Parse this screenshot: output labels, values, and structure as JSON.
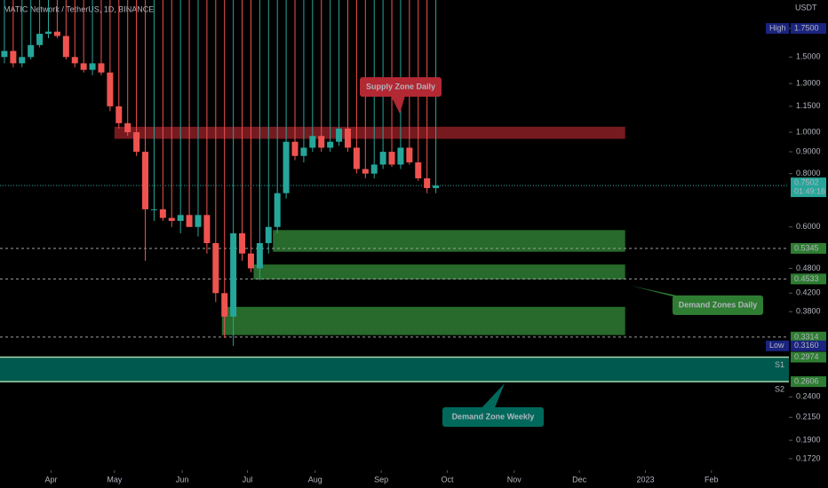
{
  "chart_data": {
    "type": "candlestick",
    "title": "MATIC Network / TetherUS, 1D, BINANCE",
    "currency": "USDT",
    "log_scale": true,
    "up_color": "#26a69a",
    "down_color": "#ef5350",
    "categories": [
      null,
      null,
      null,
      null,
      null,
      null,
      null,
      null,
      null,
      null,
      null,
      null,
      null,
      null,
      null,
      null,
      null,
      null,
      null,
      null,
      null,
      null,
      null,
      null,
      null,
      null,
      null,
      null,
      null,
      null,
      null,
      null,
      null,
      null,
      null,
      null,
      null,
      null,
      null,
      null,
      null,
      null,
      null,
      null,
      null,
      null,
      null,
      null,
      null,
      null
    ],
    "open": [
      1.5,
      1.55,
      1.45,
      1.5,
      1.6,
      1.7,
      1.72,
      1.68,
      1.5,
      1.45,
      1.4,
      1.45,
      1.38,
      1.15,
      1.05,
      1.0,
      0.9,
      0.66,
      0.66,
      0.63,
      0.62,
      0.64,
      0.6,
      0.64,
      0.55,
      0.42,
      0.37,
      0.58,
      0.52,
      0.48,
      0.55,
      0.6,
      0.72,
      0.95,
      0.88,
      0.92,
      0.98,
      0.92,
      0.95,
      1.02,
      0.92,
      0.82,
      0.8,
      0.84,
      0.9,
      0.84,
      0.92,
      0.85,
      0.78,
      0.74
    ],
    "high": {
      "name": "High",
      "value": 1.75,
      "label": "1.7500"
    },
    "low": [
      1.45,
      1.42,
      1.42,
      1.48,
      1.58,
      1.66,
      1.66,
      1.48,
      1.42,
      1.38,
      1.36,
      1.36,
      1.12,
      1.02,
      0.98,
      0.88,
      0.5,
      0.62,
      0.62,
      0.6,
      0.58,
      0.6,
      0.57,
      0.52,
      0.4,
      0.33,
      0.316,
      0.5,
      0.47,
      0.45,
      0.52,
      0.58,
      0.7,
      0.86,
      0.85,
      0.9,
      0.9,
      0.9,
      0.93,
      0.9,
      0.8,
      0.78,
      0.78,
      0.82,
      0.83,
      0.82,
      0.84,
      0.77,
      0.72,
      0.72
    ],
    "close": [
      1.55,
      1.45,
      1.5,
      1.6,
      1.7,
      1.72,
      1.68,
      1.5,
      1.45,
      1.4,
      1.45,
      1.38,
      1.15,
      1.05,
      1.0,
      0.9,
      0.66,
      0.66,
      0.63,
      0.62,
      0.64,
      0.6,
      0.64,
      0.55,
      0.42,
      0.37,
      0.58,
      0.52,
      0.48,
      0.55,
      0.6,
      0.72,
      0.95,
      0.88,
      0.92,
      0.98,
      0.92,
      0.95,
      1.02,
      0.92,
      0.82,
      0.8,
      0.84,
      0.9,
      0.84,
      0.92,
      0.85,
      0.78,
      0.74,
      0.75
    ],
    "xlim": [
      0,
      89.6
    ],
    "xticks": [
      {
        "value": 5.8,
        "label": "Apr"
      },
      {
        "value": 13,
        "label": "May"
      },
      {
        "value": 20.7,
        "label": "Jun"
      },
      {
        "value": 28.1,
        "label": "Jul"
      },
      {
        "value": 35.8,
        "label": "Aug"
      },
      {
        "value": 43.3,
        "label": "Sep"
      },
      {
        "value": 50.8,
        "label": "Oct"
      },
      {
        "value": 58.4,
        "label": "Nov"
      },
      {
        "value": 65.8,
        "label": "Dec"
      },
      {
        "value": 73.3,
        "label": "2023"
      },
      {
        "value": 80.8,
        "label": "Feb"
      }
    ],
    "ylim": [
      0.1616,
      2.04
    ],
    "yticks": [
      {
        "value": 1.75,
        "label": "1.7500"
      },
      {
        "value": 1.5,
        "label": "1.5000"
      },
      {
        "value": 1.3,
        "label": "1.3000"
      },
      {
        "value": 1.15,
        "label": "1.1500"
      },
      {
        "value": 1.0,
        "label": "1.0000"
      },
      {
        "value": 0.9,
        "label": "0.9000"
      },
      {
        "value": 0.8,
        "label": "0.8000"
      },
      {
        "value": 0.6,
        "label": "0.6000"
      },
      {
        "value": 0.48,
        "label": "0.4800"
      },
      {
        "value": 0.42,
        "label": "0.4200"
      },
      {
        "value": 0.38,
        "label": "0.3800"
      },
      {
        "value": 0.24,
        "label": "0.2400"
      },
      {
        "value": 0.215,
        "label": "0.2150"
      },
      {
        "value": 0.19,
        "label": "0.1900"
      },
      {
        "value": 0.172,
        "label": "0.1720"
      }
    ],
    "zones": [
      {
        "low": 0.965,
        "high": 1.03,
        "start": 13,
        "end": 71,
        "color": "#8b1e26"
      },
      {
        "low": 0.525,
        "high": 0.59,
        "start": 31,
        "end": 71,
        "color": "#2e7d32"
      },
      {
        "low": 0.452,
        "high": 0.49,
        "start": 28.8,
        "end": 71,
        "color": "#2e7d32"
      },
      {
        "low": 0.335,
        "high": 0.39,
        "start": 25.2,
        "end": 71,
        "color": "#2e7d32"
      },
      {
        "low": 0.2606,
        "high": 0.2974,
        "start": 0,
        "end": 89.6,
        "color": "#00695c"
      }
    ],
    "levels": [
      {
        "value": 0.5345,
        "label": "0.5345"
      },
      {
        "value": 0.4533,
        "label": "0.4533"
      },
      {
        "value": 0.3314,
        "label": "0.3314"
      }
    ],
    "supports": [
      {
        "value": 0.2974,
        "label": "0.2974",
        "name": "S1"
      },
      {
        "value": 0.2606,
        "label": "0.2606",
        "name": "S2"
      }
    ],
    "low_marker": {
      "name": "Low",
      "value": 0.316,
      "label": "0.3160"
    },
    "last": {
      "value": 0.7502,
      "label": "0.7502",
      "countdown": "01:49:16"
    },
    "annotations": [
      "Supply Zone Daily",
      "Demand Zones Daily",
      "Demand Zone Weekly"
    ]
  }
}
